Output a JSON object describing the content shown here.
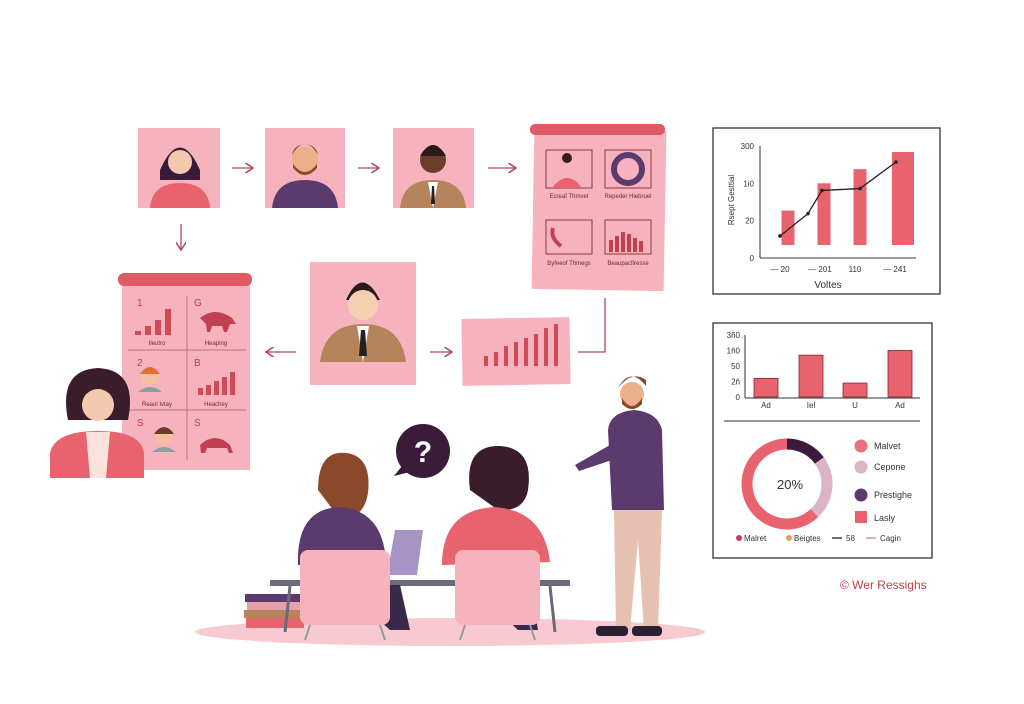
{
  "colors": {
    "pink_card": "#f6b3bd",
    "coral": "#e8636e",
    "board_top": "#e05a65",
    "purple": "#5b3b6e",
    "dark_purple": "#3a1c3a",
    "light_pink": "#dcb4c6",
    "arrow": "#b0485a",
    "floor": "#f7c9d0"
  },
  "board_left": {
    "cells": [
      {
        "num": "1",
        "caption": "Ileutro"
      },
      {
        "num": "G",
        "caption": "Heaping"
      },
      {
        "num": "2",
        "caption": "Reaol Ivtay"
      },
      {
        "num": "B",
        "caption": "Heachey"
      },
      {
        "num": "S",
        "caption": ""
      },
      {
        "num": "S",
        "caption": ""
      }
    ]
  },
  "board_right": {
    "cells": [
      {
        "caption": "Ecreaf Thmvet"
      },
      {
        "caption": "Repeder Hiebruel"
      },
      {
        "caption": "Byfeeof Thmegs"
      },
      {
        "caption": "Beaupacfiresse"
      }
    ]
  },
  "speech_bubble": {
    "symbol": "?"
  },
  "watermark": "© Wer Ressighs",
  "chart_data": [
    {
      "type": "bar",
      "ylabel": "Rsept Gesttial",
      "xlabel": "Voltes",
      "y_tick_labels": [
        "0",
        "20",
        "1i0",
        "300"
      ],
      "ylim": [
        0,
        300
      ],
      "x_tick_labels": [
        "— 20",
        "— 201",
        "110",
        "— 241"
      ],
      "values": [
        127,
        200,
        238,
        284
      ],
      "line": {
        "values": [
          59,
          119,
          181,
          186,
          257
        ]
      },
      "grid": false
    },
    {
      "type": "bar",
      "y_tick_labels": [
        "0",
        "2ñ",
        "50",
        "1ñ0",
        "3ñ0"
      ],
      "ylim": [
        0,
        200
      ],
      "categories": [
        "Ad",
        "Iel",
        "U",
        "Ad"
      ],
      "values": [
        60,
        135,
        45,
        150
      ],
      "grid": false
    },
    {
      "type": "pie",
      "center_label": "20%",
      "slices": [
        {
          "name": "Prestighe",
          "value": 15,
          "color": "#3a1c3a"
        },
        {
          "name": "Cepone",
          "value": 23,
          "color": "#dcb4c6"
        },
        {
          "name": "Malvet",
          "value": 62,
          "color": "#e8636e"
        }
      ],
      "legend": [
        "Malvet",
        "Cepone",
        "Prestighe",
        "Lasly"
      ],
      "legend_colors": [
        "#e8737c",
        "#dcb4c6",
        "#5b3b6e",
        "#e8636e"
      ],
      "bottom_legend": [
        "Malret",
        "Beigtes",
        "58",
        "Cagin"
      ],
      "bottom_legend_colors": [
        "#c2404f",
        "#e8a060",
        "#222222",
        "#d98090"
      ],
      "legend_position": "right"
    }
  ]
}
